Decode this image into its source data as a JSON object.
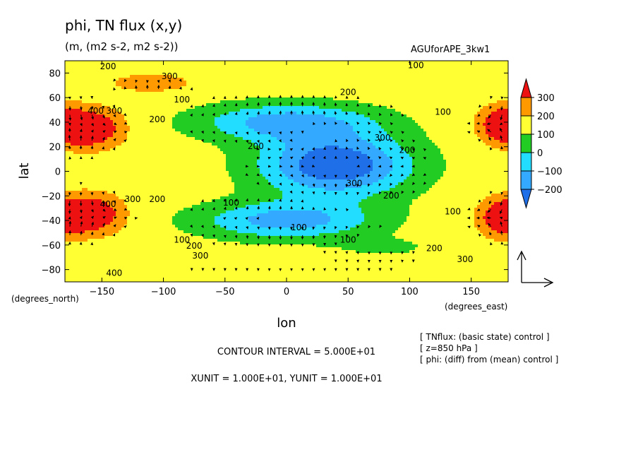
{
  "title": "phi, TN flux (x,y)",
  "subtitle": "(m, (m2 s-2, m2 s-2))",
  "run_name": "AGUforAPE_3kw1",
  "footer": {
    "contour_interval": "CONTOUR INTERVAL = 5.000E+01",
    "units": "XUNIT = 1.000E+01, YUNIT = 1.000E+01"
  },
  "notes": [
    "[ TNflux: (basic state) control ]",
    "[ z=850 hPa ]",
    "[ phi: (diff) from (mean) control ]"
  ],
  "colors": {
    "lt_m200": "#1f6fe8",
    "m200_m100": "#33aaff",
    "m100_0": "#22ddff",
    "0_100": "#22cc22",
    "100_200": "#ffff33",
    "200_300": "#ff9900",
    "gt_300": "#ee1111"
  },
  "chart_data": {
    "type": "contour",
    "xlabel": "lon",
    "ylabel": "lat",
    "xunit_label": "(degrees_east)",
    "yunit_label": "(degrees_north)",
    "xlim": [
      -180,
      180
    ],
    "ylim": [
      -90,
      90
    ],
    "xticks": [
      -150,
      -100,
      -50,
      0,
      50,
      100,
      150
    ],
    "yticks": [
      -80,
      -60,
      -40,
      -20,
      0,
      20,
      40,
      60,
      80
    ],
    "colorbar": {
      "levels": [
        -200,
        -100,
        0,
        100,
        200,
        300
      ],
      "labels": [
        "300",
        "200",
        "100",
        "0",
        "−100",
        "−200"
      ]
    },
    "field_features": [
      {
        "lon": 40,
        "lat": 5,
        "value": -300,
        "sx": 60,
        "sy": 25
      },
      {
        "lon": 0,
        "lat": 40,
        "value": -150,
        "sx": 70,
        "sy": 15
      },
      {
        "lon": 0,
        "lat": -40,
        "value": -150,
        "sx": 70,
        "sy": 15
      },
      {
        "lon": -160,
        "lat": 35,
        "value": 450,
        "sx": 25,
        "sy": 15
      },
      {
        "lon": -160,
        "lat": -35,
        "value": 450,
        "sx": 25,
        "sy": 15
      },
      {
        "lon": 175,
        "lat": 38,
        "value": 400,
        "sx": 18,
        "sy": 14
      },
      {
        "lon": 175,
        "lat": -38,
        "value": 400,
        "sx": 18,
        "sy": 14
      },
      {
        "lon": -110,
        "lat": 72,
        "value": 280,
        "sx": 30,
        "sy": 7
      },
      {
        "lon": 0,
        "lat": -82,
        "value": 200,
        "sx": 200,
        "sy": 6
      },
      {
        "lon": 0,
        "lat": 82,
        "value": 150,
        "sx": 200,
        "sy": 6
      },
      {
        "lon": 80,
        "lat": -62,
        "value": 80,
        "sx": 40,
        "sy": 8
      }
    ],
    "contour_labels": [
      {
        "text": "200",
        "lon": -145,
        "lat": 83
      },
      {
        "text": "300",
        "lon": -95,
        "lat": 75
      },
      {
        "text": "100",
        "lon": 105,
        "lat": 84
      },
      {
        "text": "200",
        "lon": 50,
        "lat": 62
      },
      {
        "text": "100",
        "lon": -85,
        "lat": 56
      },
      {
        "text": "100",
        "lon": 127,
        "lat": 46
      },
      {
        "text": "200",
        "lon": -105,
        "lat": 40
      },
      {
        "text": "400",
        "lon": -155,
        "lat": 47
      },
      {
        "text": "300",
        "lon": -140,
        "lat": 47
      },
      {
        "text": "300",
        "lon": 78,
        "lat": 25
      },
      {
        "text": "200",
        "lon": -25,
        "lat": 18
      },
      {
        "text": "200",
        "lon": 98,
        "lat": 15
      },
      {
        "text": "300",
        "lon": 55,
        "lat": -12
      },
      {
        "text": "300",
        "lon": -125,
        "lat": -25
      },
      {
        "text": "400",
        "lon": -145,
        "lat": -29
      },
      {
        "text": "200",
        "lon": -105,
        "lat": -25
      },
      {
        "text": "200",
        "lon": 85,
        "lat": -22
      },
      {
        "text": "100",
        "lon": -45,
        "lat": -28
      },
      {
        "text": "100",
        "lon": 135,
        "lat": -35
      },
      {
        "text": "100",
        "lon": 10,
        "lat": -48
      },
      {
        "text": "100",
        "lon": 50,
        "lat": -58
      },
      {
        "text": "100",
        "lon": -85,
        "lat": -58
      },
      {
        "text": "200",
        "lon": -75,
        "lat": -63
      },
      {
        "text": "300",
        "lon": -70,
        "lat": -71
      },
      {
        "text": "200",
        "lon": 120,
        "lat": -65
      },
      {
        "text": "300",
        "lon": 145,
        "lat": -74
      },
      {
        "text": "400",
        "lon": -140,
        "lat": -85
      }
    ]
  }
}
